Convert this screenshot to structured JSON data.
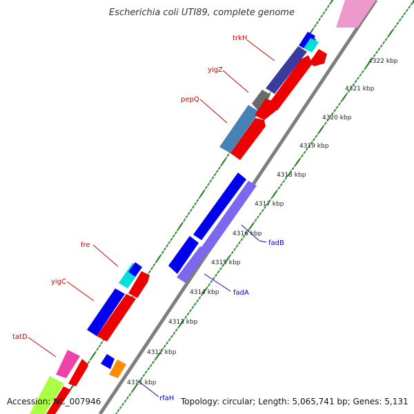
{
  "title": "Escherichia coli UTI89, complete genome",
  "footer": {
    "accession": "Accession: NC_007946",
    "summary": "Topology: circular; Length: 5,065,741 bp; Genes: 5,131"
  },
  "colors": {
    "backbone": "#8a8a8a",
    "tick_dot": "#2e8b2e",
    "tick_major": "#1a6e1a",
    "label_forward": "#cc0000",
    "label_reverse": "#0000cc"
  },
  "scale_labels": [
    "4311 kbp",
    "4312 kbp",
    "4313 kbp",
    "4314 kbp",
    "4315 kbp",
    "4316 kbp",
    "4317 kbp",
    "4318 kbp",
    "4319 kbp",
    "4320 kbp",
    "4321 kbp",
    "4322 kbp"
  ],
  "gene_labels": [
    {
      "text": "trkH",
      "strand": "forward"
    },
    {
      "text": "yigZ",
      "strand": "forward"
    },
    {
      "text": "pepQ",
      "strand": "forward"
    },
    {
      "text": "fre",
      "strand": "forward"
    },
    {
      "text": "yigC",
      "strand": "forward"
    },
    {
      "text": "tatD",
      "strand": "forward"
    },
    {
      "text": "fadB",
      "strand": "reverse"
    },
    {
      "text": "fadA",
      "strand": "reverse"
    },
    {
      "text": "rfaH",
      "strand": "reverse"
    }
  ]
}
